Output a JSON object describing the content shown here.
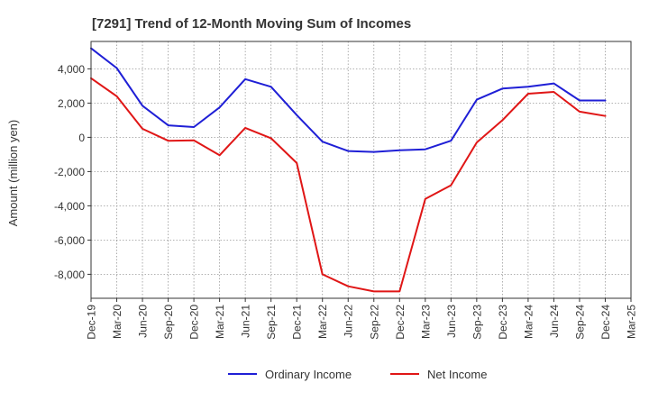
{
  "chart_data": {
    "type": "line",
    "title": "[7291]  Trend of 12-Month Moving Sum of Incomes",
    "ylabel": "Amount (million yen)",
    "xlabel": "",
    "ylim": [
      -9400,
      5600
    ],
    "y_ticks": [
      4000,
      2000,
      0,
      -2000,
      -4000,
      -6000,
      -8000
    ],
    "y_tick_labels": [
      "4,000",
      "2,000",
      "0",
      "-2,000",
      "-4,000",
      "-6,000",
      "-8,000"
    ],
    "categories": [
      "Dec-19",
      "Mar-20",
      "Jun-20",
      "Sep-20",
      "Dec-20",
      "Mar-21",
      "Jun-21",
      "Sep-21",
      "Dec-21",
      "Mar-22",
      "Jun-22",
      "Sep-22",
      "Dec-22",
      "Mar-23",
      "Jun-23",
      "Sep-23",
      "Dec-23",
      "Mar-24",
      "Jun-24",
      "Sep-24",
      "Dec-24",
      "Mar-25"
    ],
    "grid": true,
    "legend_position": "bottom",
    "series": [
      {
        "name": "Ordinary Income",
        "color": "#1f1fd6",
        "values": [
          5200,
          4050,
          1850,
          700,
          600,
          1750,
          3400,
          2950,
          1300,
          -250,
          -800,
          -850,
          -750,
          -700,
          -200,
          2200,
          2850,
          2950,
          3150,
          2150,
          2150,
          null
        ]
      },
      {
        "name": "Net Income",
        "color": "#e01616",
        "values": [
          3450,
          2400,
          500,
          -200,
          -180,
          -1050,
          550,
          -50,
          -1500,
          -8000,
          -8700,
          -9000,
          -9000,
          -3600,
          -2800,
          -300,
          1000,
          2550,
          2650,
          1500,
          1250,
          null
        ]
      }
    ]
  }
}
